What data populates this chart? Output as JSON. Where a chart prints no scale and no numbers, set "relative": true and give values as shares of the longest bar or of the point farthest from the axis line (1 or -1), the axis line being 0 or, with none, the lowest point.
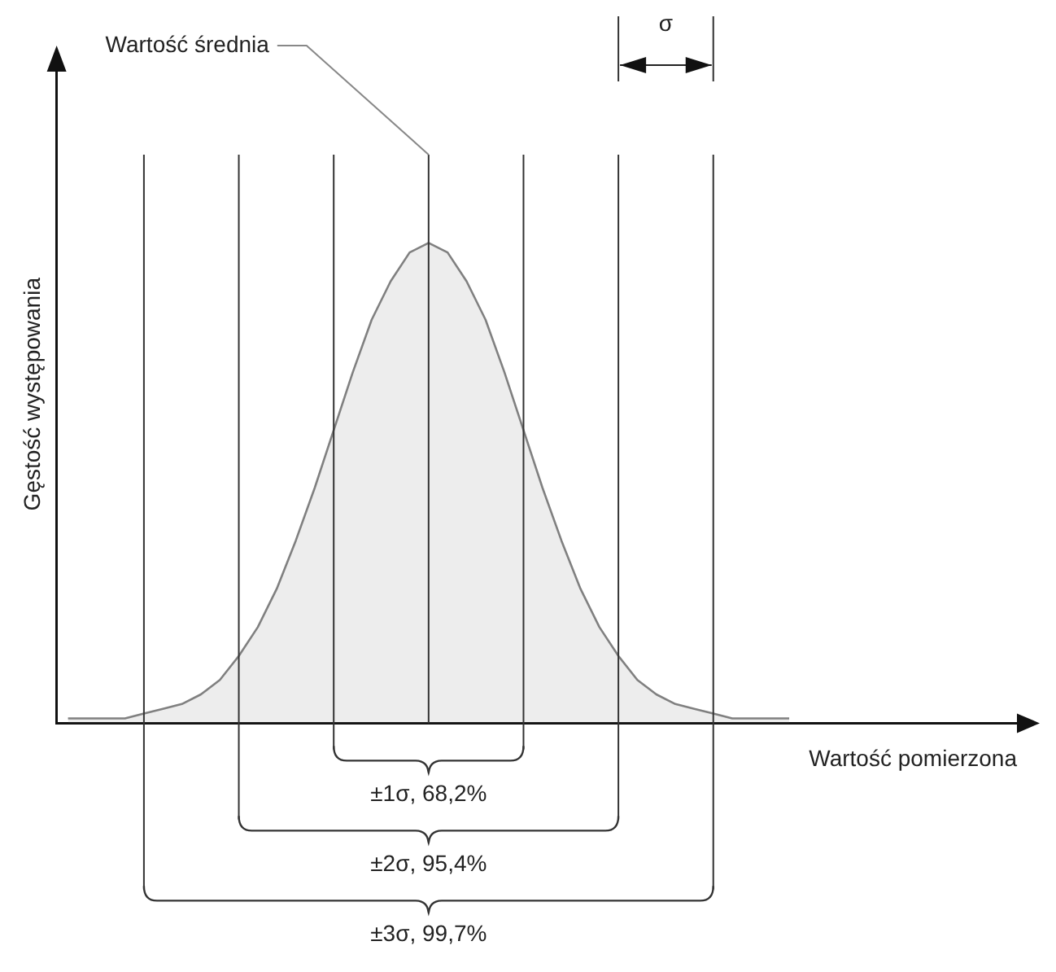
{
  "chart_data": {
    "type": "area",
    "relative": true,
    "grid": "x",
    "xlabel": "Wartość pomierzona",
    "ylabel": "Gęstość występowania",
    "categories": [
      null,
      null,
      null,
      null,
      null,
      null,
      null,
      null,
      null,
      null,
      null,
      null,
      null,
      null,
      null,
      null,
      null,
      null,
      null,
      null,
      null,
      null,
      null,
      null,
      null,
      null,
      null,
      null,
      null,
      null,
      null,
      null,
      null,
      null,
      null,
      null,
      null,
      null,
      null
    ],
    "series": [
      {
        "color": "#808080",
        "values": [
          0.01,
          0.01,
          0.01,
          0.01,
          0.02,
          0.03,
          0.04,
          0.06,
          0.09,
          0.14,
          0.2,
          0.28,
          0.38,
          0.49,
          0.61,
          0.73,
          0.84,
          0.92,
          0.98,
          1,
          0.98,
          0.92,
          0.84,
          0.73,
          0.61,
          0.49,
          0.38,
          0.28,
          0.2,
          0.14,
          0.09,
          0.06,
          0.04,
          0.03,
          0.02,
          0.01,
          0.01,
          0.01,
          0.01
        ]
      }
    ],
    "annotations": [
      "Wartość średnia",
      "σ",
      "±1σ, 68,2%",
      "±2σ, 95,4%",
      "±3σ, 99,7%"
    ]
  }
}
